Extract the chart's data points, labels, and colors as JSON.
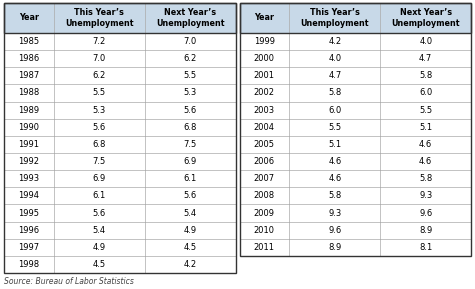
{
  "left_data": [
    [
      "1985",
      "7.2",
      "7.0"
    ],
    [
      "1986",
      "7.0",
      "6.2"
    ],
    [
      "1987",
      "6.2",
      "5.5"
    ],
    [
      "1988",
      "5.5",
      "5.3"
    ],
    [
      "1989",
      "5.3",
      "5.6"
    ],
    [
      "1990",
      "5.6",
      "6.8"
    ],
    [
      "1991",
      "6.8",
      "7.5"
    ],
    [
      "1992",
      "7.5",
      "6.9"
    ],
    [
      "1993",
      "6.9",
      "6.1"
    ],
    [
      "1994",
      "6.1",
      "5.6"
    ],
    [
      "1995",
      "5.6",
      "5.4"
    ],
    [
      "1996",
      "5.4",
      "4.9"
    ],
    [
      "1997",
      "4.9",
      "4.5"
    ],
    [
      "1998",
      "4.5",
      "4.2"
    ]
  ],
  "right_data": [
    [
      "1999",
      "4.2",
      "4.0"
    ],
    [
      "2000",
      "4.0",
      "4.7"
    ],
    [
      "2001",
      "4.7",
      "5.8"
    ],
    [
      "2002",
      "5.8",
      "6.0"
    ],
    [
      "2003",
      "6.0",
      "5.5"
    ],
    [
      "2004",
      "5.5",
      "5.1"
    ],
    [
      "2005",
      "5.1",
      "4.6"
    ],
    [
      "2006",
      "4.6",
      "4.6"
    ],
    [
      "2007",
      "4.6",
      "5.8"
    ],
    [
      "2008",
      "5.8",
      "9.3"
    ],
    [
      "2009",
      "9.3",
      "9.6"
    ],
    [
      "2010",
      "9.6",
      "8.9"
    ],
    [
      "2011",
      "8.9",
      "8.1"
    ]
  ],
  "col_headers": [
    "Year",
    "This Year’s\nUnemployment",
    "Next Year’s\nUnemployment"
  ],
  "header_bg": "#c8d9e8",
  "source_text": "Source: Bureau of Labor Statistics",
  "outer_border_color": "#333333",
  "grid_color": "#aaaaaa",
  "bg_color": "#ffffff",
  "fig_w": 4.75,
  "fig_h": 2.89,
  "dpi": 100
}
